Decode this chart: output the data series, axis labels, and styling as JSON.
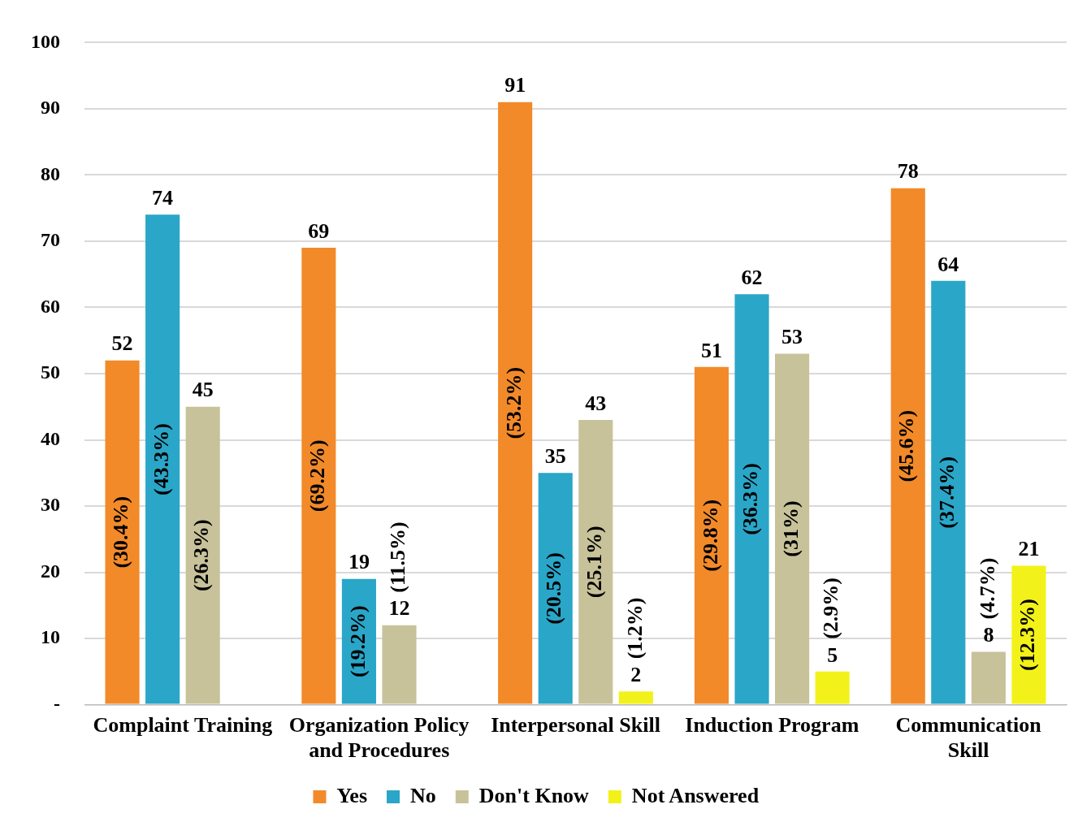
{
  "chart_data": {
    "type": "bar",
    "categories": [
      "Complaint Training",
      "Organization Policy and Procedures",
      "Interpersonal Skill",
      "Induction Program",
      "Communication Skill"
    ],
    "series": [
      {
        "name": "Yes",
        "color": "#f28a2a",
        "values": [
          52,
          69,
          91,
          51,
          78
        ]
      },
      {
        "name": "No",
        "color": "#2aa6c8",
        "values": [
          74,
          19,
          35,
          62,
          64
        ]
      },
      {
        "name": "Don't Know",
        "color": "#c8c29a",
        "values": [
          45,
          12,
          43,
          53,
          8
        ]
      },
      {
        "name": "Not Answered",
        "color": "#f2f21a",
        "values": [
          null,
          null,
          2,
          5,
          21
        ]
      }
    ],
    "annotations": [
      "(30.4%)",
      "(43.3%)",
      "(26.3%)",
      "(69.2%)",
      "(19.2%)",
      "(11.5%)",
      "(53.2%)",
      "(20.5%)",
      "(25.1%)",
      "(1.2%)",
      "(29.8%)",
      "(36.3%)",
      "(31%)",
      "(2.9%)",
      "(45.6%)",
      "(37.4%)",
      "(4.7%)",
      "(12.3%)"
    ],
    "ylim": [
      0,
      100
    ],
    "yticks": [
      {
        "value": 0,
        "label": "-"
      },
      10,
      20,
      30,
      40,
      50,
      60,
      70,
      80,
      90,
      100
    ],
    "grid": "y",
    "legend": "bottom",
    "data_labels": true
  }
}
